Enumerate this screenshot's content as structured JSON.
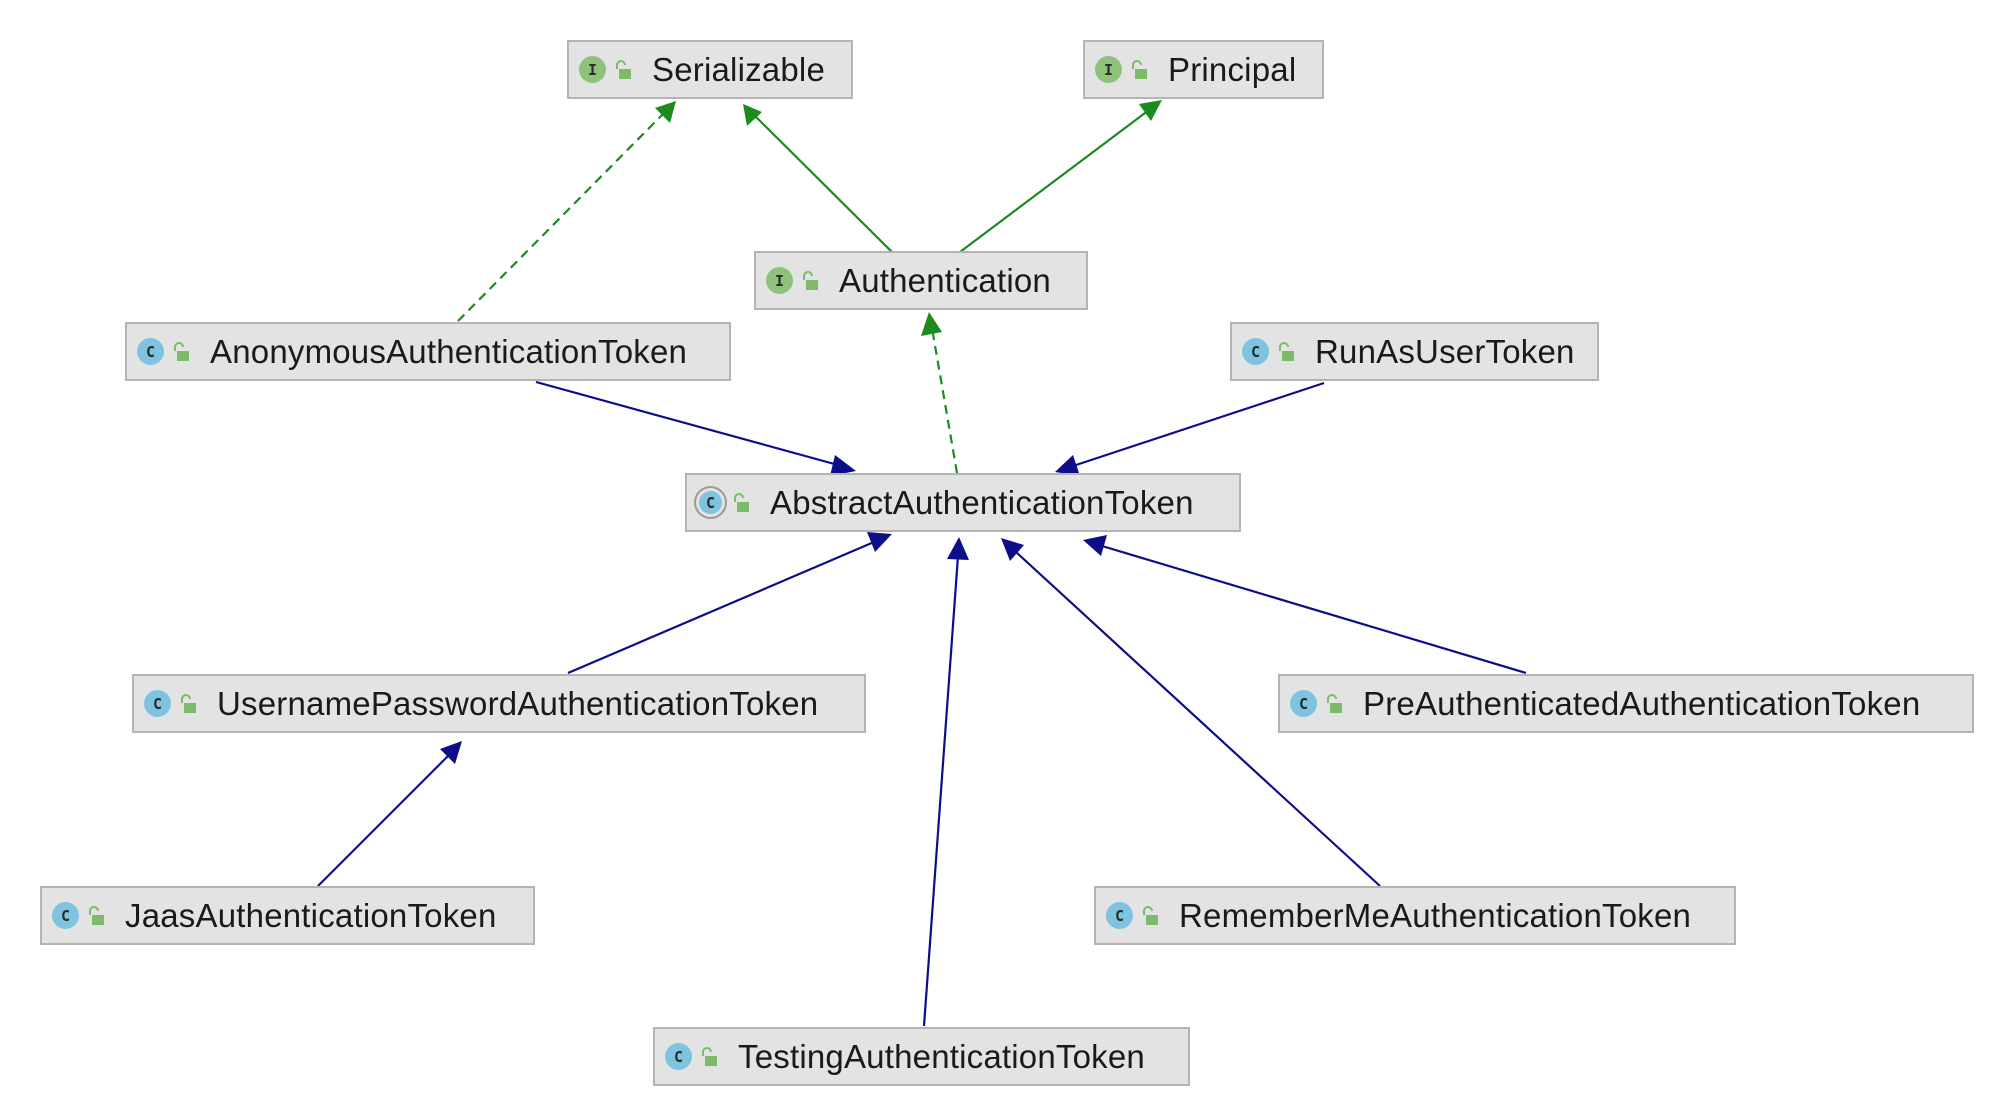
{
  "diagram": {
    "nodes": [
      {
        "id": "serializable",
        "label": "Serializable",
        "kind": "interface",
        "kind_letter": "I",
        "visibility": "public"
      },
      {
        "id": "principal",
        "label": "Principal",
        "kind": "interface",
        "kind_letter": "I",
        "visibility": "public"
      },
      {
        "id": "authentication",
        "label": "Authentication",
        "kind": "interface",
        "kind_letter": "I",
        "visibility": "public"
      },
      {
        "id": "anonymous",
        "label": "AnonymousAuthenticationToken",
        "kind": "class",
        "kind_letter": "C",
        "visibility": "public"
      },
      {
        "id": "runas",
        "label": "RunAsUserToken",
        "kind": "class",
        "kind_letter": "C",
        "visibility": "public"
      },
      {
        "id": "abstract",
        "label": "AbstractAuthenticationToken",
        "kind": "abstract",
        "kind_letter": "C",
        "visibility": "public"
      },
      {
        "id": "usernamepassword",
        "label": "UsernamePasswordAuthenticationToken",
        "kind": "class",
        "kind_letter": "C",
        "visibility": "public"
      },
      {
        "id": "preauth",
        "label": "PreAuthenticatedAuthenticationToken",
        "kind": "class",
        "kind_letter": "C",
        "visibility": "public"
      },
      {
        "id": "jaas",
        "label": "JaasAuthenticationToken",
        "kind": "class",
        "kind_letter": "C",
        "visibility": "public"
      },
      {
        "id": "rememberme",
        "label": "RememberMeAuthenticationToken",
        "kind": "class",
        "kind_letter": "C",
        "visibility": "public"
      },
      {
        "id": "testing",
        "label": "TestingAuthenticationToken",
        "kind": "class",
        "kind_letter": "C",
        "visibility": "public"
      }
    ],
    "edges": [
      {
        "from": "authentication",
        "to": "serializable",
        "type": "extends-interface"
      },
      {
        "from": "authentication",
        "to": "principal",
        "type": "extends-interface"
      },
      {
        "from": "anonymous",
        "to": "serializable",
        "type": "implements"
      },
      {
        "from": "abstract",
        "to": "authentication",
        "type": "implements"
      },
      {
        "from": "anonymous",
        "to": "abstract",
        "type": "extends"
      },
      {
        "from": "runas",
        "to": "abstract",
        "type": "extends"
      },
      {
        "from": "usernamepassword",
        "to": "abstract",
        "type": "extends"
      },
      {
        "from": "testing",
        "to": "abstract",
        "type": "extends"
      },
      {
        "from": "rememberme",
        "to": "abstract",
        "type": "extends"
      },
      {
        "from": "preauth",
        "to": "abstract",
        "type": "extends"
      },
      {
        "from": "jaas",
        "to": "usernamepassword",
        "type": "extends"
      }
    ],
    "colors": {
      "interface_edge": "#1d8a1d",
      "class_edge": "#0d0d8a",
      "node_fill": "#e3e3e3",
      "node_border": "#b4b4b4",
      "interface_icon": "#8ec27a",
      "class_icon": "#7ec4e0",
      "lock_icon": "#7dbb6a"
    }
  }
}
